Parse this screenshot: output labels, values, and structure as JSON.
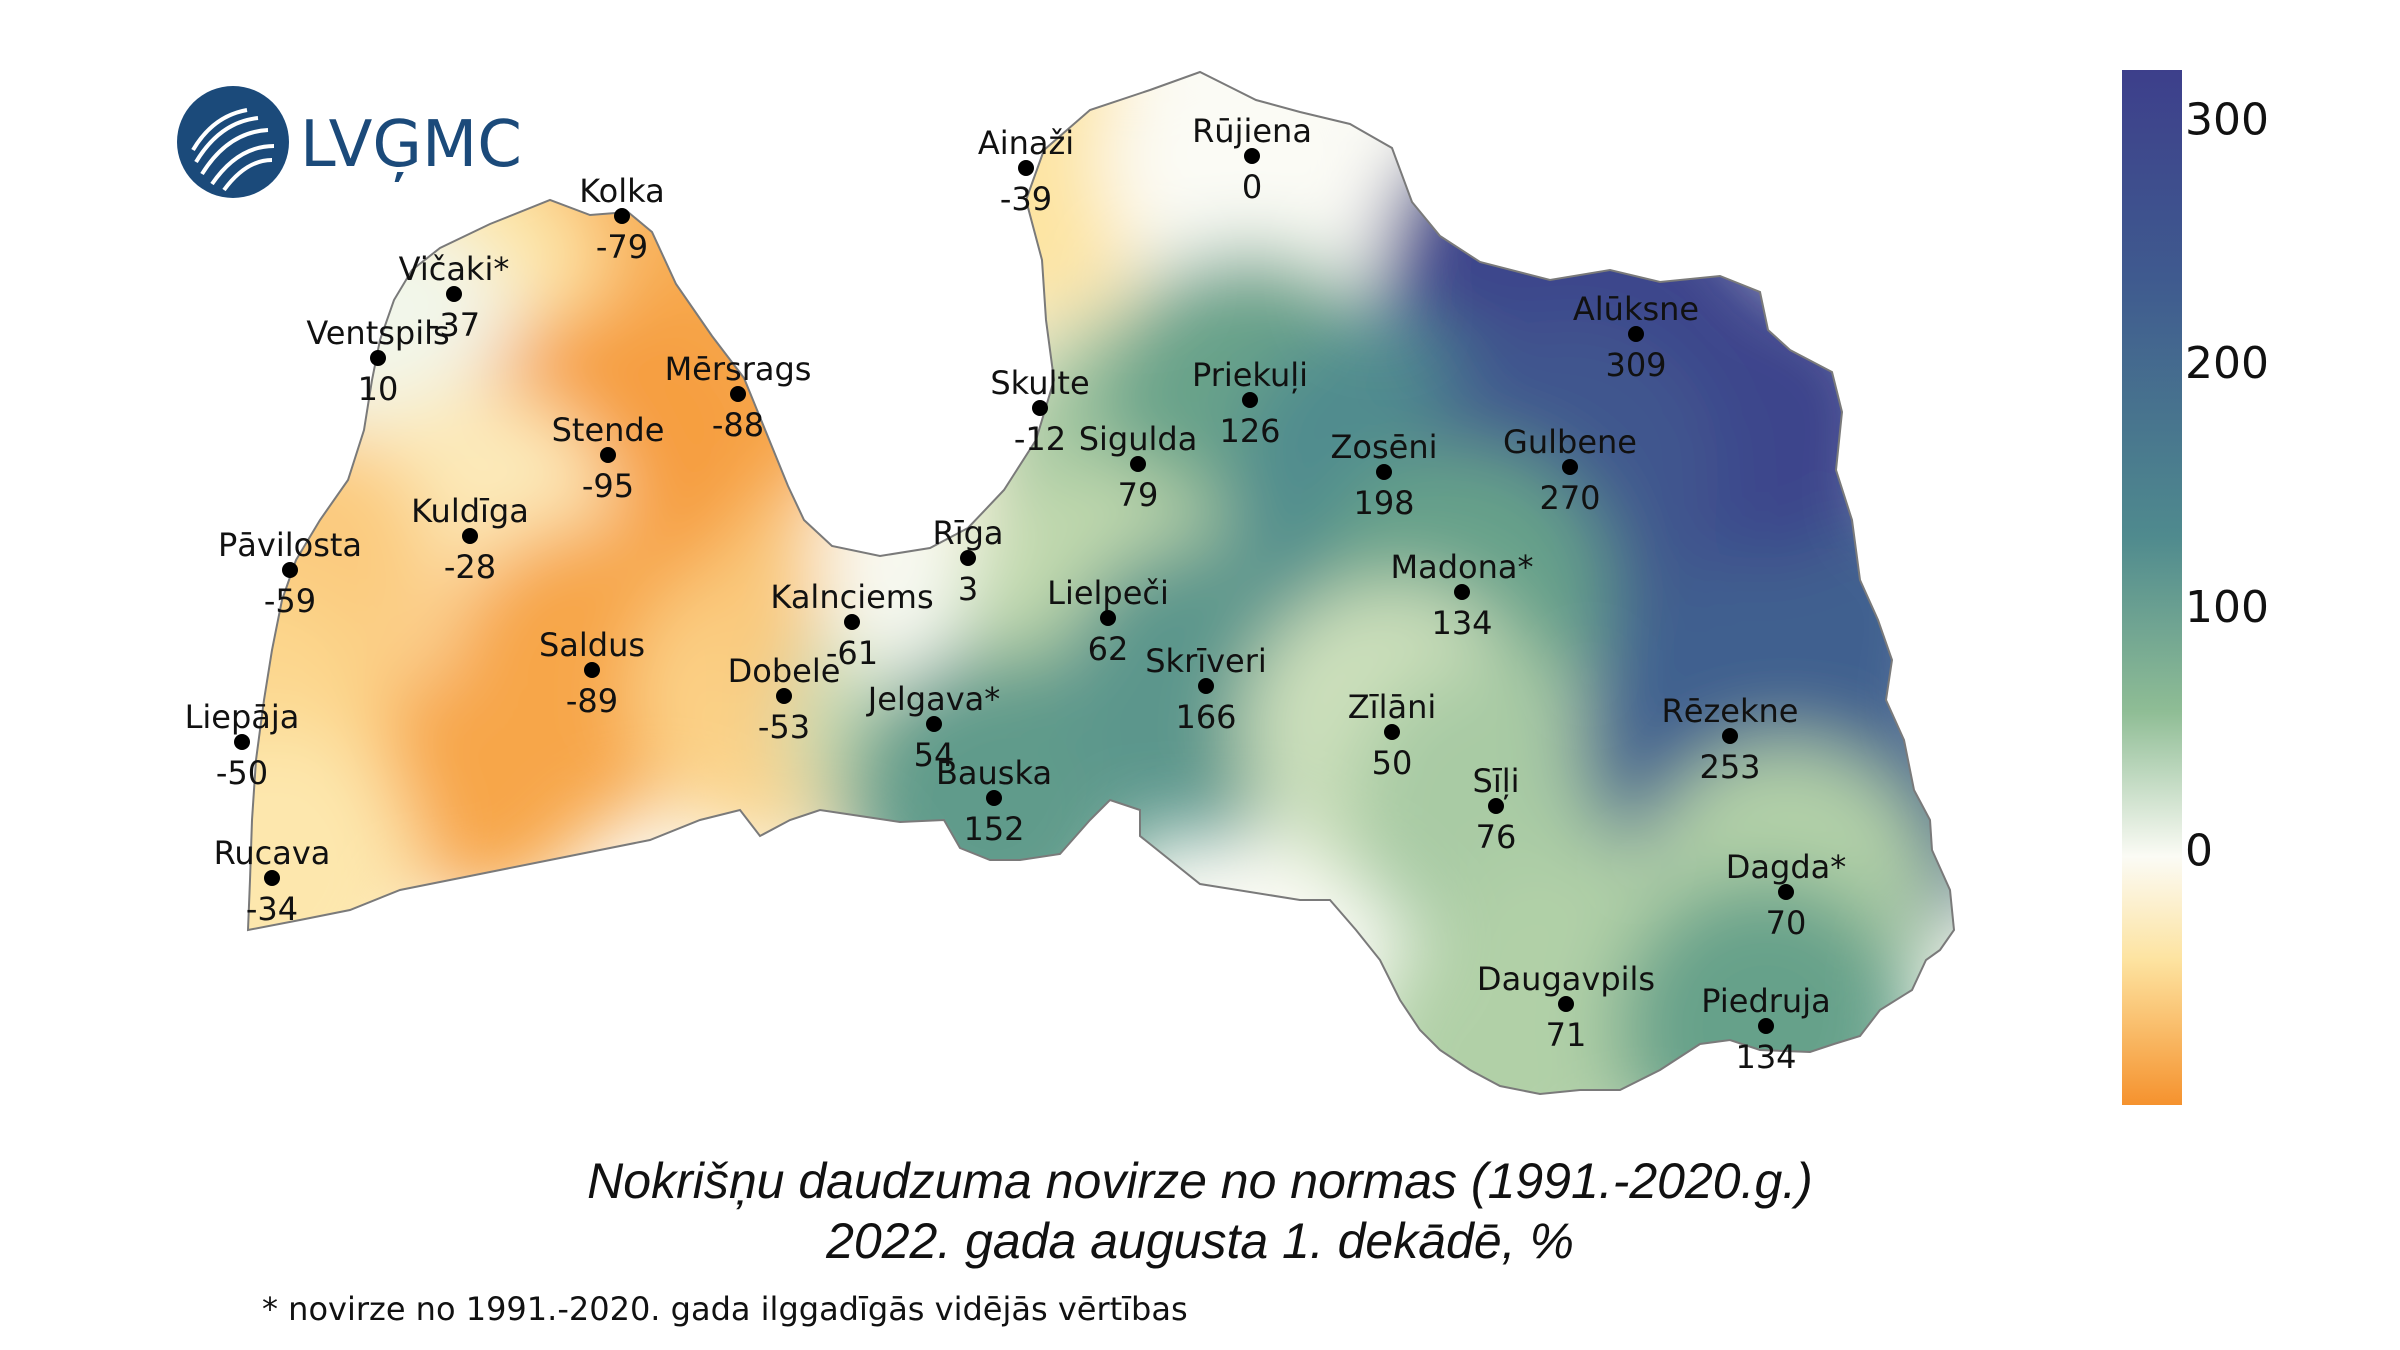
{
  "logo": {
    "text": "LVĢMC",
    "icon": "lvgmc-circle-logo-icon"
  },
  "title": {
    "line1": "Nokrišņu daudzuma novirze no normas (1991.-2020.g.)",
    "line2": "2022. gada augusta 1. dekādē, %"
  },
  "footnote": "* novirze no 1991.-2020. gada ilggadīgās vidējās vērtības",
  "colorbar": {
    "ticks": [
      "300",
      "200",
      "100",
      "0"
    ],
    "tick_values": [
      300,
      200,
      100,
      0
    ],
    "range": [
      -105,
      320
    ],
    "colors": {
      "low": "#f5922e",
      "zero": "#fbfbf5",
      "mid": "#6ea989",
      "high": "#3d3f8b"
    }
  },
  "stations": [
    {
      "name": "Kolka",
      "value": "-79",
      "v": -79
    },
    {
      "name": "Vičaki*",
      "value": "-37",
      "v": -37
    },
    {
      "name": "Ventspils",
      "value": "10",
      "v": 10
    },
    {
      "name": "Mērsrags",
      "value": "-88",
      "v": -88
    },
    {
      "name": "Stende",
      "value": "-95",
      "v": -95
    },
    {
      "name": "Kuldīga",
      "value": "-28",
      "v": -28
    },
    {
      "name": "Pāvilosta",
      "value": "-59",
      "v": -59
    },
    {
      "name": "Saldus",
      "value": "-89",
      "v": -89
    },
    {
      "name": "Liepāja",
      "value": "-50",
      "v": -50
    },
    {
      "name": "Rucava",
      "value": "-34",
      "v": -34
    },
    {
      "name": "Dobele",
      "value": "-53",
      "v": -53
    },
    {
      "name": "Kalnciems",
      "value": "-61",
      "v": -61
    },
    {
      "name": "Jelgava*",
      "value": "54",
      "v": 54
    },
    {
      "name": "Rīga",
      "value": "3",
      "v": 3
    },
    {
      "name": "Skulte",
      "value": "-12",
      "v": -12
    },
    {
      "name": "Ainaži",
      "value": "-39",
      "v": -39
    },
    {
      "name": "Rūjiena",
      "value": "0",
      "v": 0
    },
    {
      "name": "Sigulda",
      "value": "79",
      "v": 79
    },
    {
      "name": "Priekuļi",
      "value": "126",
      "v": 126
    },
    {
      "name": "Lielpeči",
      "value": "62",
      "v": 62
    },
    {
      "name": "Bauska",
      "value": "152",
      "v": 152
    },
    {
      "name": "Skrīveri",
      "value": "166",
      "v": 166
    },
    {
      "name": "Zosēni",
      "value": "198",
      "v": 198
    },
    {
      "name": "Alūksne",
      "value": "309",
      "v": 309
    },
    {
      "name": "Gulbene",
      "value": "270",
      "v": 270
    },
    {
      "name": "Madona*",
      "value": "134",
      "v": 134
    },
    {
      "name": "Zīlāni",
      "value": "50",
      "v": 50
    },
    {
      "name": "Sīļi",
      "value": "76",
      "v": 76
    },
    {
      "name": "Rēzekne",
      "value": "253",
      "v": 253
    },
    {
      "name": "Dagda*",
      "value": "70",
      "v": 70
    },
    {
      "name": "Daugavpils",
      "value": "71",
      "v": 71
    },
    {
      "name": "Piedruja",
      "value": "134",
      "v": 134
    }
  ]
}
